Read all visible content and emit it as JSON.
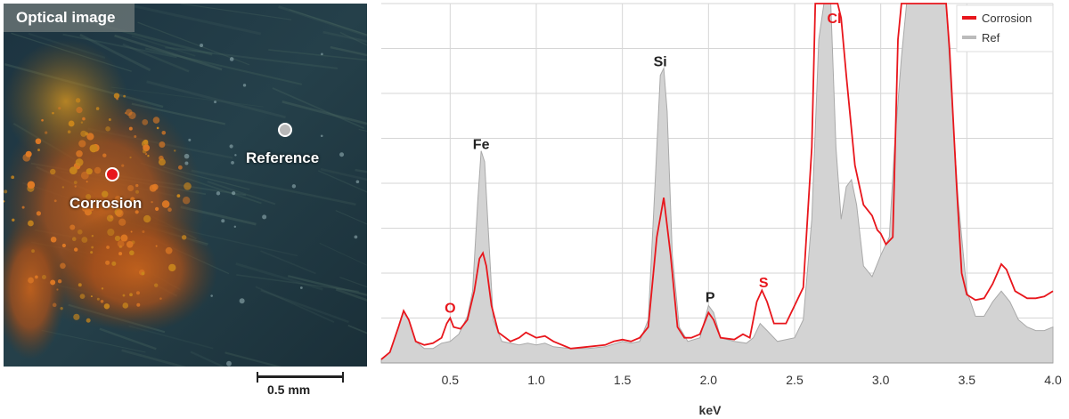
{
  "optical_panel": {
    "title": "Optical image",
    "markers": [
      {
        "label": "Corrosion",
        "color": "#e8161c"
      },
      {
        "label": "Reference",
        "color": "#b8b8b8"
      }
    ],
    "scale_bar": {
      "label": "0.5 mm",
      "value_mm": 0.5
    }
  },
  "chart_data": {
    "type": "area",
    "xlabel": "keV",
    "xlim": [
      0.1,
      4.0
    ],
    "x_ticks": [
      "0.5",
      "1.0",
      "1.5",
      "2.0",
      "2.5",
      "3.0",
      "3.5",
      "4.0"
    ],
    "ylim": [
      0,
      1
    ],
    "grid": true,
    "legend_placement": "top-right",
    "series": [
      {
        "name": "Corrosion",
        "color": "#e8161c",
        "style": "line",
        "points": [
          [
            0.1,
            0.01
          ],
          [
            0.15,
            0.03
          ],
          [
            0.2,
            0.1
          ],
          [
            0.23,
            0.145
          ],
          [
            0.26,
            0.12
          ],
          [
            0.3,
            0.06
          ],
          [
            0.35,
            0.05
          ],
          [
            0.4,
            0.055
          ],
          [
            0.45,
            0.07
          ],
          [
            0.48,
            0.11
          ],
          [
            0.5,
            0.125
          ],
          [
            0.52,
            0.1
          ],
          [
            0.56,
            0.095
          ],
          [
            0.6,
            0.12
          ],
          [
            0.64,
            0.2
          ],
          [
            0.67,
            0.29
          ],
          [
            0.69,
            0.306
          ],
          [
            0.71,
            0.27
          ],
          [
            0.74,
            0.16
          ],
          [
            0.78,
            0.085
          ],
          [
            0.85,
            0.06
          ],
          [
            0.9,
            0.07
          ],
          [
            0.94,
            0.085
          ],
          [
            1.0,
            0.07
          ],
          [
            1.05,
            0.075
          ],
          [
            1.1,
            0.06
          ],
          [
            1.2,
            0.04
          ],
          [
            1.3,
            0.045
          ],
          [
            1.4,
            0.05
          ],
          [
            1.45,
            0.06
          ],
          [
            1.5,
            0.065
          ],
          [
            1.55,
            0.06
          ],
          [
            1.6,
            0.07
          ],
          [
            1.65,
            0.1
          ],
          [
            1.7,
            0.35
          ],
          [
            1.74,
            0.46
          ],
          [
            1.78,
            0.3
          ],
          [
            1.82,
            0.1
          ],
          [
            1.86,
            0.07
          ],
          [
            1.9,
            0.07
          ],
          [
            1.95,
            0.08
          ],
          [
            2.0,
            0.14
          ],
          [
            2.03,
            0.12
          ],
          [
            2.07,
            0.07
          ],
          [
            2.15,
            0.065
          ],
          [
            2.2,
            0.08
          ],
          [
            2.24,
            0.07
          ],
          [
            2.28,
            0.17
          ],
          [
            2.31,
            0.202
          ],
          [
            2.34,
            0.17
          ],
          [
            2.38,
            0.11
          ],
          [
            2.45,
            0.11
          ],
          [
            2.55,
            0.21
          ],
          [
            2.6,
            0.6
          ],
          [
            2.62,
            1.0
          ],
          [
            2.75,
            1.0
          ],
          [
            2.77,
            0.96
          ],
          [
            2.8,
            0.8
          ],
          [
            2.85,
            0.55
          ],
          [
            2.9,
            0.44
          ],
          [
            2.95,
            0.41
          ],
          [
            2.98,
            0.37
          ],
          [
            3.0,
            0.36
          ],
          [
            3.03,
            0.33
          ],
          [
            3.07,
            0.35
          ],
          [
            3.1,
            0.9
          ],
          [
            3.12,
            1.0
          ],
          [
            3.38,
            1.0
          ],
          [
            3.4,
            0.87
          ],
          [
            3.44,
            0.5
          ],
          [
            3.47,
            0.25
          ],
          [
            3.5,
            0.19
          ],
          [
            3.55,
            0.175
          ],
          [
            3.6,
            0.18
          ],
          [
            3.65,
            0.22
          ],
          [
            3.7,
            0.275
          ],
          [
            3.73,
            0.26
          ],
          [
            3.78,
            0.2
          ],
          [
            3.85,
            0.18
          ],
          [
            3.9,
            0.18
          ],
          [
            3.95,
            0.185
          ],
          [
            4.0,
            0.2
          ]
        ]
      },
      {
        "name": "Ref",
        "color": "#bbbbbb",
        "style": "filled",
        "points": [
          [
            0.1,
            0.01
          ],
          [
            0.15,
            0.03
          ],
          [
            0.2,
            0.1
          ],
          [
            0.23,
            0.145
          ],
          [
            0.26,
            0.12
          ],
          [
            0.3,
            0.06
          ],
          [
            0.35,
            0.04
          ],
          [
            0.4,
            0.04
          ],
          [
            0.45,
            0.055
          ],
          [
            0.5,
            0.06
          ],
          [
            0.55,
            0.08
          ],
          [
            0.6,
            0.13
          ],
          [
            0.63,
            0.2
          ],
          [
            0.66,
            0.45
          ],
          [
            0.68,
            0.59
          ],
          [
            0.7,
            0.56
          ],
          [
            0.72,
            0.38
          ],
          [
            0.75,
            0.12
          ],
          [
            0.8,
            0.06
          ],
          [
            0.9,
            0.05
          ],
          [
            0.95,
            0.055
          ],
          [
            1.0,
            0.05
          ],
          [
            1.05,
            0.055
          ],
          [
            1.1,
            0.045
          ],
          [
            1.2,
            0.04
          ],
          [
            1.3,
            0.04
          ],
          [
            1.4,
            0.045
          ],
          [
            1.5,
            0.06
          ],
          [
            1.55,
            0.055
          ],
          [
            1.6,
            0.06
          ],
          [
            1.65,
            0.12
          ],
          [
            1.69,
            0.5
          ],
          [
            1.72,
            0.8
          ],
          [
            1.74,
            0.82
          ],
          [
            1.76,
            0.7
          ],
          [
            1.79,
            0.3
          ],
          [
            1.83,
            0.1
          ],
          [
            1.88,
            0.06
          ],
          [
            1.95,
            0.07
          ],
          [
            2.0,
            0.16
          ],
          [
            2.03,
            0.14
          ],
          [
            2.07,
            0.07
          ],
          [
            2.15,
            0.06
          ],
          [
            2.22,
            0.055
          ],
          [
            2.26,
            0.07
          ],
          [
            2.3,
            0.11
          ],
          [
            2.34,
            0.09
          ],
          [
            2.4,
            0.06
          ],
          [
            2.5,
            0.07
          ],
          [
            2.55,
            0.12
          ],
          [
            2.6,
            0.4
          ],
          [
            2.64,
            0.9
          ],
          [
            2.67,
            1.0
          ],
          [
            2.71,
            1.0
          ],
          [
            2.74,
            0.6
          ],
          [
            2.77,
            0.4
          ],
          [
            2.8,
            0.49
          ],
          [
            2.83,
            0.51
          ],
          [
            2.86,
            0.44
          ],
          [
            2.9,
            0.27
          ],
          [
            2.95,
            0.24
          ],
          [
            3.0,
            0.3
          ],
          [
            3.05,
            0.35
          ],
          [
            3.08,
            0.6
          ],
          [
            3.12,
            0.85
          ],
          [
            3.15,
            1.0
          ],
          [
            3.38,
            1.0
          ],
          [
            3.41,
            0.75
          ],
          [
            3.45,
            0.45
          ],
          [
            3.5,
            0.2
          ],
          [
            3.55,
            0.13
          ],
          [
            3.6,
            0.13
          ],
          [
            3.65,
            0.17
          ],
          [
            3.7,
            0.2
          ],
          [
            3.75,
            0.17
          ],
          [
            3.8,
            0.12
          ],
          [
            3.85,
            0.1
          ],
          [
            3.9,
            0.09
          ],
          [
            3.95,
            0.09
          ],
          [
            4.0,
            0.1
          ]
        ]
      }
    ],
    "peak_labels": [
      {
        "text": "O",
        "x": 0.5,
        "y": 0.155,
        "color": "#e8161c"
      },
      {
        "text": "Fe",
        "x": 0.68,
        "y": 0.61,
        "color": "#222222"
      },
      {
        "text": "Si",
        "x": 1.72,
        "y": 0.84,
        "color": "#222222"
      },
      {
        "text": "P",
        "x": 2.01,
        "y": 0.185,
        "color": "#222222"
      },
      {
        "text": "S",
        "x": 2.32,
        "y": 0.225,
        "color": "#e8161c"
      },
      {
        "text": "Cl",
        "x": 2.73,
        "y": 0.96,
        "color": "#e8161c"
      }
    ]
  }
}
